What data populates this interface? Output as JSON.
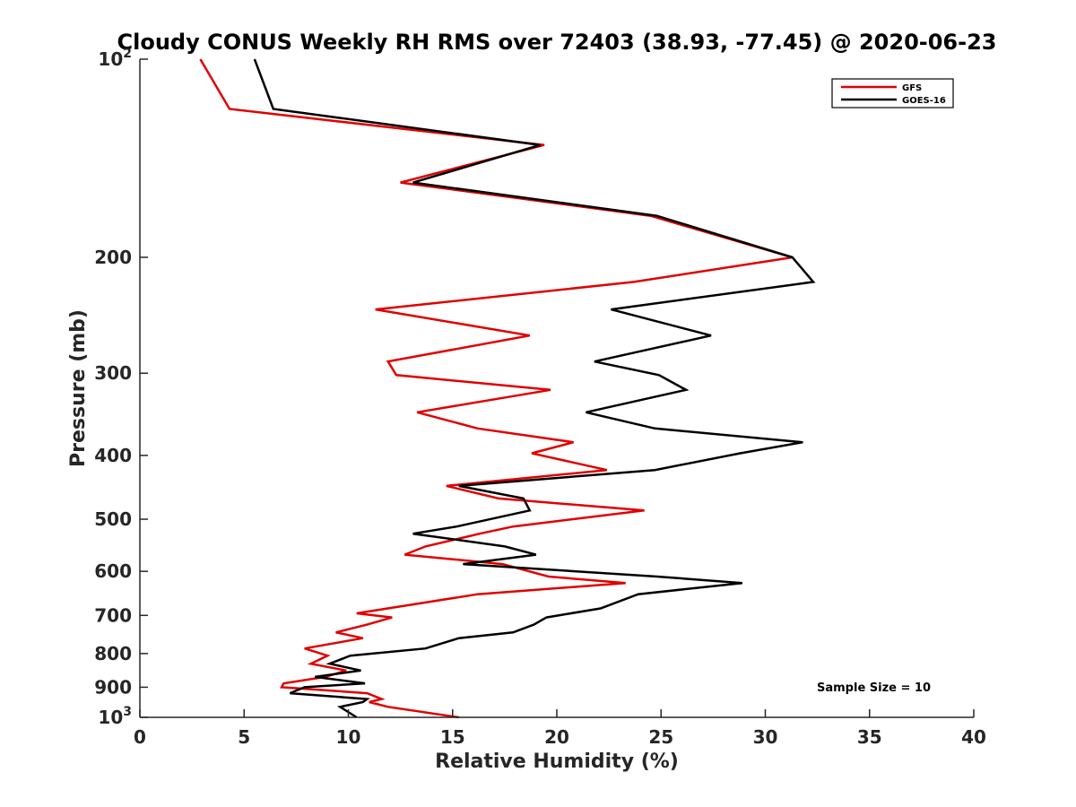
{
  "chart_data": {
    "type": "line",
    "title": "Cloudy CONUS Weekly RH RMS over 72403 (38.93, -77.45) @ 2020-06-23",
    "xlabel": "Relative Humidity (%)",
    "ylabel": "Pressure (mb)",
    "xlim": [
      0,
      40
    ],
    "ylim": [
      100,
      1000
    ],
    "yscale": "log",
    "y_reversed": true,
    "grid": false,
    "legend_position": "top-right",
    "x_ticks": [
      0,
      5,
      10,
      15,
      20,
      25,
      30,
      35,
      40
    ],
    "x_tick_labels": [
      "0",
      "5",
      "10",
      "15",
      "20",
      "25",
      "30",
      "35",
      "40"
    ],
    "y_ticks": [
      100,
      200,
      300,
      400,
      500,
      600,
      700,
      800,
      900,
      1000
    ],
    "y_tick_labels": [
      {
        "base": "10",
        "exp": "2"
      },
      {
        "base": "200"
      },
      {
        "base": "300"
      },
      {
        "base": "400"
      },
      {
        "base": "500"
      },
      {
        "base": "600"
      },
      {
        "base": "700"
      },
      {
        "base": "800"
      },
      {
        "base": "900"
      },
      {
        "base": "10",
        "exp": "3"
      }
    ],
    "annotation": "Sample Size = 10",
    "series": [
      {
        "name": "GFS",
        "color": "#e00000",
        "points": [
          [
            2.9,
            100
          ],
          [
            4.3,
            119
          ],
          [
            19.4,
            135
          ],
          [
            12.5,
            154
          ],
          [
            24.5,
            173
          ],
          [
            31.3,
            200
          ],
          [
            23.7,
            218
          ],
          [
            11.3,
            240
          ],
          [
            18.7,
            263
          ],
          [
            11.9,
            288
          ],
          [
            12.3,
            302
          ],
          [
            19.7,
            318
          ],
          [
            13.3,
            344
          ],
          [
            16.2,
            364
          ],
          [
            20.8,
            382
          ],
          [
            18.8,
            397
          ],
          [
            22.4,
            421
          ],
          [
            14.7,
            445
          ],
          [
            17.2,
            465
          ],
          [
            24.2,
            485
          ],
          [
            17.9,
            513
          ],
          [
            16.3,
            526
          ],
          [
            13.7,
            550
          ],
          [
            12.7,
            566
          ],
          [
            17.4,
            585
          ],
          [
            19.6,
            611
          ],
          [
            23.3,
            625
          ],
          [
            16.2,
            650
          ],
          [
            10.4,
            695
          ],
          [
            12.1,
            705
          ],
          [
            10.9,
            723
          ],
          [
            9.4,
            743
          ],
          [
            10.7,
            758
          ],
          [
            7.9,
            786
          ],
          [
            9.0,
            806
          ],
          [
            8.2,
            829
          ],
          [
            9.9,
            849
          ],
          [
            8.9,
            868
          ],
          [
            6.9,
            888
          ],
          [
            6.8,
            900
          ],
          [
            10.9,
            919
          ],
          [
            11.6,
            938
          ],
          [
            11.0,
            948
          ],
          [
            11.9,
            964
          ],
          [
            15.3,
            1000
          ]
        ]
      },
      {
        "name": "GOES-16",
        "color": "#000000",
        "points": [
          [
            5.5,
            100
          ],
          [
            6.4,
            119
          ],
          [
            19.2,
            135
          ],
          [
            13.1,
            154
          ],
          [
            24.8,
            173
          ],
          [
            31.3,
            200
          ],
          [
            32.3,
            218
          ],
          [
            22.6,
            240
          ],
          [
            27.4,
            263
          ],
          [
            21.8,
            288
          ],
          [
            24.9,
            302
          ],
          [
            26.2,
            318
          ],
          [
            21.4,
            344
          ],
          [
            24.7,
            364
          ],
          [
            31.8,
            382
          ],
          [
            28.8,
            397
          ],
          [
            24.7,
            421
          ],
          [
            15.3,
            445
          ],
          [
            18.4,
            465
          ],
          [
            18.7,
            485
          ],
          [
            15.2,
            513
          ],
          [
            13.1,
            526
          ],
          [
            17.5,
            550
          ],
          [
            19.0,
            566
          ],
          [
            15.5,
            585
          ],
          [
            24.8,
            611
          ],
          [
            28.9,
            625
          ],
          [
            23.9,
            650
          ],
          [
            22.1,
            683
          ],
          [
            19.5,
            705
          ],
          [
            18.9,
            723
          ],
          [
            17.9,
            743
          ],
          [
            15.3,
            758
          ],
          [
            13.7,
            786
          ],
          [
            10.1,
            806
          ],
          [
            9.1,
            829
          ],
          [
            10.6,
            849
          ],
          [
            8.4,
            868
          ],
          [
            10.8,
            888
          ],
          [
            7.9,
            900
          ],
          [
            7.2,
            919
          ],
          [
            10.9,
            938
          ],
          [
            10.7,
            948
          ],
          [
            9.6,
            964
          ],
          [
            10.4,
            1000
          ]
        ]
      }
    ]
  }
}
